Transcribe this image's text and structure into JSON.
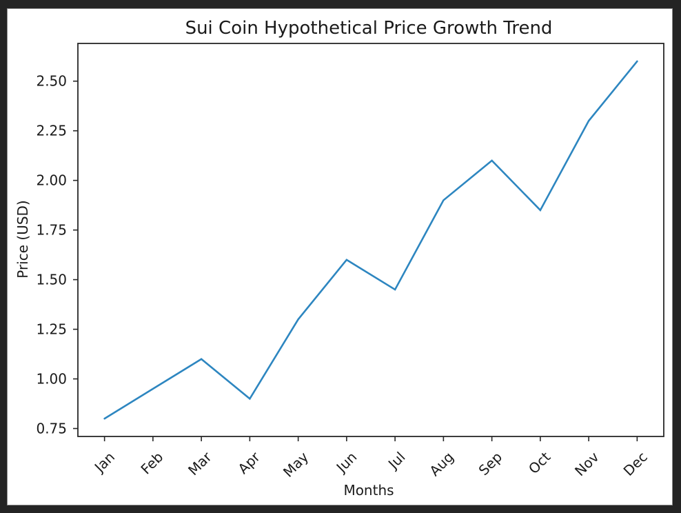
{
  "window": {
    "background_color": "#242424",
    "figure_background_color": "#ffffff",
    "figure_border_color": "#8a8a8a"
  },
  "chart_data": {
    "type": "line",
    "title": "Sui Coin Hypothetical Price Growth Trend",
    "xlabel": "Months",
    "ylabel": "Price (USD)",
    "categories": [
      "Jan",
      "Feb",
      "Mar",
      "Apr",
      "May",
      "Jun",
      "Jul",
      "Aug",
      "Sep",
      "Oct",
      "Nov",
      "Dec"
    ],
    "series": [
      {
        "name": "price_usd",
        "values": [
          0.8,
          0.95,
          1.1,
          0.9,
          1.3,
          1.6,
          1.45,
          1.9,
          2.1,
          1.85,
          2.3,
          2.6
        ]
      }
    ],
    "y_ticks": [
      0.75,
      1.0,
      1.25,
      1.5,
      1.75,
      2.0,
      2.25,
      2.5
    ],
    "y_tick_format_decimals": 2,
    "ylim": [
      0.71,
      2.69
    ],
    "x_outer_margin": 0.55,
    "x_tick_rotation_deg": 45,
    "grid": false,
    "legend_position": null,
    "line_color": "#2d86c0",
    "axis_color": "#262626",
    "text_color": "#1a1a1a"
  }
}
